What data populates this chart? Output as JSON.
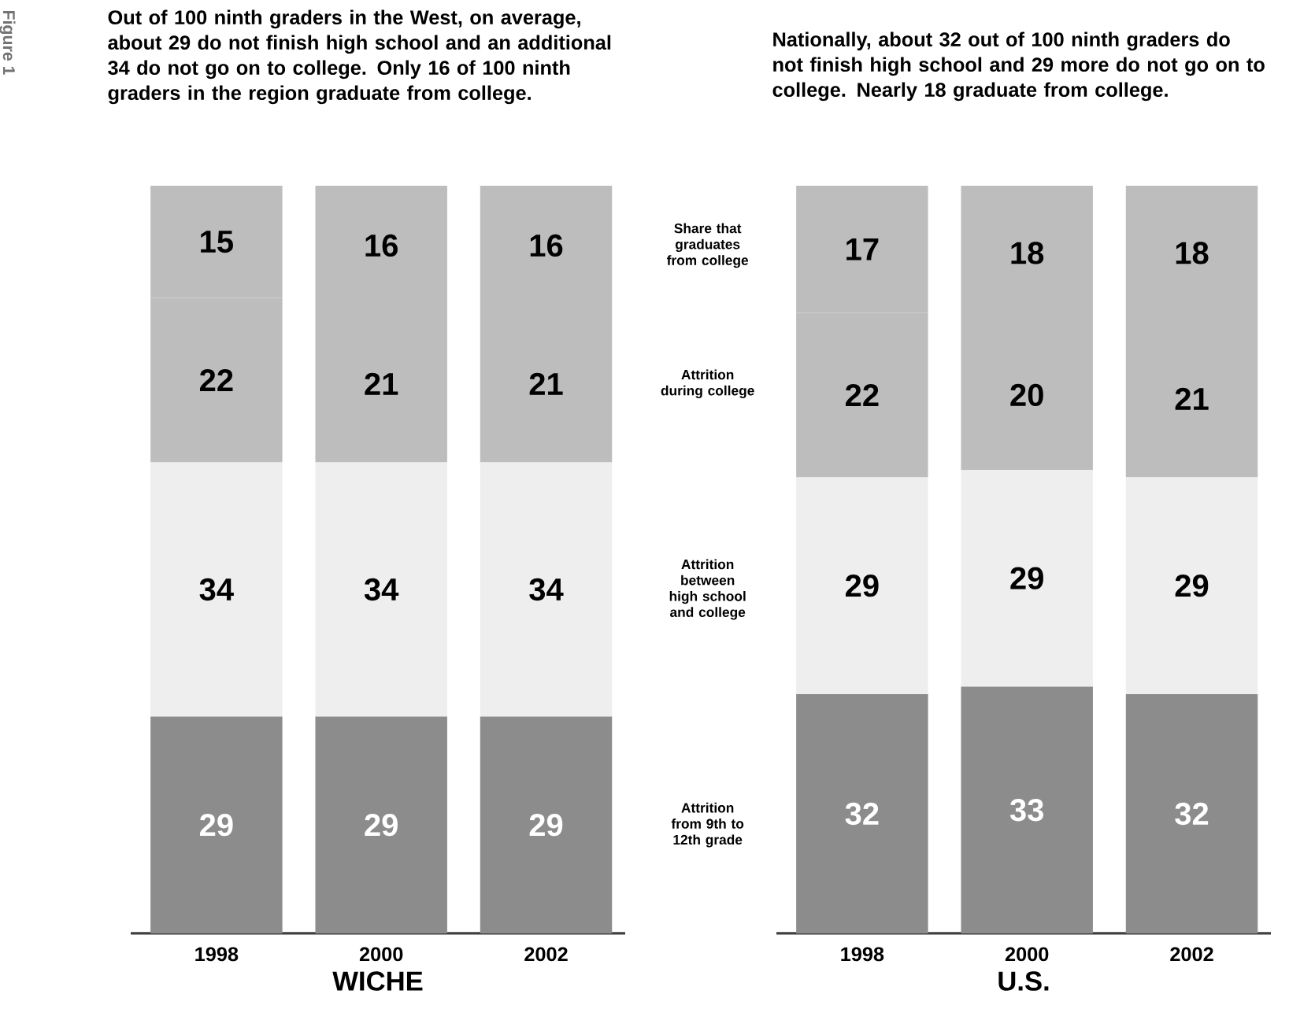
{
  "chart_data": [
    {
      "type": "bar",
      "stacked": true,
      "data_labels": true,
      "title": "Out of 100 ninth graders in the West, on average, about 29 do not finish high school and an additional 34 do not go on to college. Only 16 of 100 ninth graders in the region graduate from college.",
      "xlabel": "WICHE",
      "annotations": [
        "Figure 1"
      ],
      "categories": [
        "1998",
        "2000",
        "2002"
      ],
      "series": [
        {
          "name": "Attrition from 9th to 12th grade",
          "color": "#8c8c8c",
          "values": [
            29,
            29,
            29
          ]
        },
        {
          "name": "Attrition between high school and college",
          "color": "#eeeeee",
          "values": [
            34,
            34,
            34
          ]
        },
        {
          "name": "Attrition during college",
          "color": "#bdbdbd",
          "values": [
            22,
            21,
            21
          ]
        },
        {
          "name": "Share that graduates from college",
          "color": "#bdbdbd",
          "values": [
            15,
            16,
            16
          ]
        }
      ]
    },
    {
      "type": "bar",
      "stacked": true,
      "data_labels": true,
      "title": "Nationally, about 32 out of 100 ninth graders do not finish high school and 29 more do not go on to college. Nearly 18 graduate from college.",
      "xlabel": "U.S.",
      "categories": [
        "1998",
        "2000",
        "2002"
      ],
      "series": [
        {
          "color": "#8c8c8c",
          "values": [
            32,
            33,
            32
          ]
        },
        {
          "color": "#eeeeee",
          "values": [
            29,
            29,
            29
          ]
        },
        {
          "color": "#bdbdbd",
          "values": [
            22,
            20,
            21
          ]
        },
        {
          "color": "#bdbdbd",
          "values": [
            17,
            18,
            18
          ]
        }
      ]
    }
  ]
}
